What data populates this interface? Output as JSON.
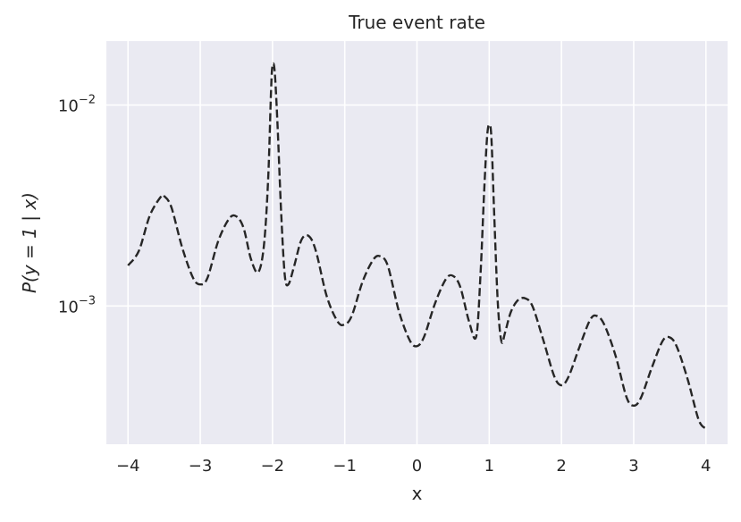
{
  "chart_data": {
    "type": "line",
    "title": "True event rate",
    "xlabel": "x",
    "ylabel": "P(y = 1 | x)",
    "xlim": [
      -4.3,
      4.3
    ],
    "ylim": [
      0.000205,
      0.0208
    ],
    "yscale": "log",
    "grid": true,
    "x_ticks": [
      -4,
      -3,
      -2,
      -1,
      0,
      1,
      2,
      3,
      4
    ],
    "x_tick_labels": [
      "−4",
      "−3",
      "−2",
      "−1",
      "0",
      "1",
      "2",
      "3",
      "4"
    ],
    "y_ticks": [
      0.001,
      0.01
    ],
    "y_tick_labels": [
      {
        "base": "10",
        "exp": "−3"
      },
      {
        "base": "10",
        "exp": "−2"
      }
    ],
    "series": [
      {
        "style": "dashed",
        "color": "#262626",
        "x": [
          -4.0,
          -3.85,
          -3.7,
          -3.55,
          -3.5,
          -3.4,
          -3.25,
          -3.1,
          -3.0,
          -2.9,
          -2.75,
          -2.6,
          -2.5,
          -2.4,
          -2.3,
          -2.2,
          -2.12,
          -2.06,
          -2.02,
          -2.0,
          -1.97,
          -1.93,
          -1.88,
          -1.83,
          -1.78,
          -1.7,
          -1.6,
          -1.5,
          -1.4,
          -1.25,
          -1.1,
          -1.0,
          -0.9,
          -0.75,
          -0.6,
          -0.5,
          -0.4,
          -0.25,
          -0.1,
          0.0,
          0.1,
          0.25,
          0.4,
          0.5,
          0.6,
          0.72,
          0.82,
          0.88,
          0.93,
          0.97,
          1.0,
          1.03,
          1.07,
          1.12,
          1.17,
          1.22,
          1.3,
          1.4,
          1.5,
          1.6,
          1.75,
          1.9,
          2.0,
          2.1,
          2.25,
          2.4,
          2.5,
          2.6,
          2.75,
          2.9,
          3.0,
          3.1,
          3.25,
          3.4,
          3.5,
          3.6,
          3.75,
          3.9,
          4.0
        ],
        "y": [
          0.00159,
          0.00188,
          0.00281,
          0.00348,
          0.00352,
          0.0031,
          0.00195,
          0.00138,
          0.00128,
          0.00138,
          0.00211,
          0.00272,
          0.00279,
          0.00244,
          0.00172,
          0.00147,
          0.00198,
          0.0043,
          0.0118,
          0.0157,
          0.0147,
          0.0079,
          0.0029,
          0.00142,
          0.00128,
          0.00158,
          0.00213,
          0.00223,
          0.00188,
          0.00112,
          0.000838,
          0.000809,
          0.000898,
          0.00133,
          0.00171,
          0.00176,
          0.00157,
          0.00094,
          0.000674,
          0.000631,
          0.000705,
          0.00103,
          0.00136,
          0.00141,
          0.00124,
          0.000839,
          0.000705,
          0.00145,
          0.00372,
          0.00689,
          0.00797,
          0.00689,
          0.0028,
          0.00102,
          0.000665,
          0.000738,
          0.000934,
          0.00107,
          0.00109,
          0.000995,
          0.000674,
          0.000447,
          0.000403,
          0.000446,
          0.000626,
          0.000857,
          0.000889,
          0.000797,
          0.000564,
          0.000352,
          0.000319,
          0.000349,
          0.000492,
          0.000669,
          0.000697,
          0.000623,
          0.000428,
          0.000271,
          0.000245
        ]
      }
    ]
  }
}
